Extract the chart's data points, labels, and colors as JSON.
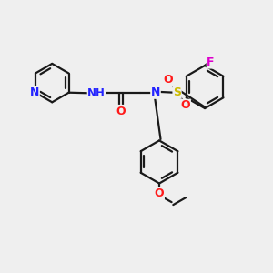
{
  "bg_color": "#efefef",
  "bond_color": "#1a1a1a",
  "N_color": "#2424ff",
  "O_color": "#ff1a1a",
  "S_color": "#ccbb00",
  "F_color": "#dd00cc",
  "H_color": "#607080",
  "line_width": 1.6,
  "double_sep": 0.1,
  "figsize": [
    3.0,
    3.0
  ],
  "dpi": 100,
  "xlim": [
    0,
    10
  ],
  "ylim": [
    0,
    10
  ]
}
